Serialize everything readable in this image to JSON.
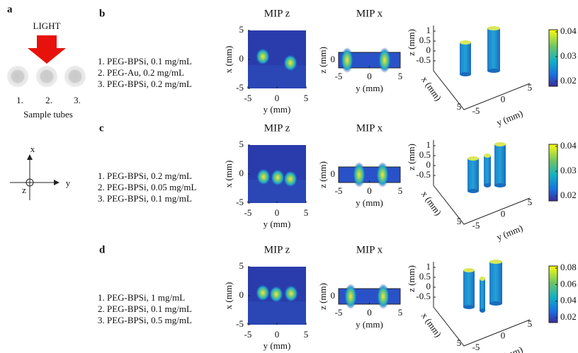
{
  "panel_a": {
    "label": "a",
    "light": "LIGHT",
    "tubes": [
      "1.",
      "2.",
      "3."
    ],
    "caption": "Sample tubes",
    "axes": {
      "x": "x",
      "y": "y",
      "z": "z"
    }
  },
  "rows": [
    {
      "label": "b",
      "samples": [
        "1. PEG-BPSi, 0.1 mg/mL",
        "2. PEG-Au, 0.2 mg/mL",
        "3. PEG-BPSi, 0.2 mg/mL"
      ],
      "mip_z": {
        "title": "MIP z",
        "xlabel": "y (mm)",
        "ylabel": "x (mm)",
        "xticks": [
          -5,
          0,
          5
        ],
        "yticks": [
          5,
          0,
          -5
        ]
      },
      "mip_x": {
        "title": "MIP x",
        "xlabel": "y (mm)",
        "ylabel": "z (mm)",
        "xticks": [
          -5,
          0,
          5
        ],
        "yticks": [
          0
        ]
      },
      "view3d": {
        "zlabel": "z (mm)",
        "xlabel": "x (mm)",
        "ylabel": "y (mm)",
        "zticks": [
          1,
          0.5,
          0,
          -0.5
        ],
        "xticks": [
          5
        ],
        "yticks": [
          -5,
          0,
          5
        ]
      },
      "colorbar": {
        "ticks": [
          0.04,
          0.03,
          0.02
        ]
      }
    },
    {
      "label": "c",
      "samples": [
        "1. PEG-BPSi, 0.2 mg/mL",
        "2. PEG-BPSi, 0.05 mg/mL",
        "3. PEG-BPSi, 0.1 mg/mL"
      ],
      "mip_z": {
        "title": "MIP z",
        "xlabel": "y (mm)",
        "ylabel": "x (mm)",
        "xticks": [
          -5,
          0,
          5
        ],
        "yticks": [
          5,
          0,
          -5
        ]
      },
      "mip_x": {
        "title": "MIP x",
        "xlabel": "y (mm)",
        "ylabel": "z (mm)",
        "xticks": [
          -5,
          0,
          5
        ],
        "yticks": [
          0
        ]
      },
      "view3d": {
        "zlabel": "z (mm)",
        "xlabel": "x (mm)",
        "ylabel": "y (mm)",
        "zticks": [
          1,
          0.5,
          0,
          -0.5
        ],
        "xticks": [
          5
        ],
        "yticks": [
          -5,
          0,
          5
        ]
      },
      "colorbar": {
        "ticks": [
          0.04,
          0.03,
          0.02
        ]
      }
    },
    {
      "label": "d",
      "samples": [
        "1. PEG-BPSi, 1 mg/mL",
        "2. PEG-BPSi, 0.1 mg/mL",
        "3. PEG-BPSi, 0.5 mg/mL"
      ],
      "mip_z": {
        "title": "MIP z",
        "xlabel": "y (mm)",
        "ylabel": "x (mm)",
        "xticks": [
          -5,
          0,
          5
        ],
        "yticks": [
          5,
          0,
          -5
        ]
      },
      "mip_x": {
        "title": "MIP x",
        "xlabel": "y (mm)",
        "ylabel": "z (mm)",
        "xticks": [
          -5,
          0,
          5
        ],
        "yticks": [
          0
        ]
      },
      "view3d": {
        "zlabel": "z (mm)",
        "xlabel": "x (mm)",
        "ylabel": "y (mm)",
        "zticks": [
          1,
          0.5,
          0,
          -0.5
        ],
        "xticks": [
          5
        ],
        "yticks": [
          -5,
          0,
          5
        ]
      },
      "colorbar": {
        "ticks": [
          0.08,
          0.06,
          0.04,
          0.02
        ]
      }
    }
  ]
}
